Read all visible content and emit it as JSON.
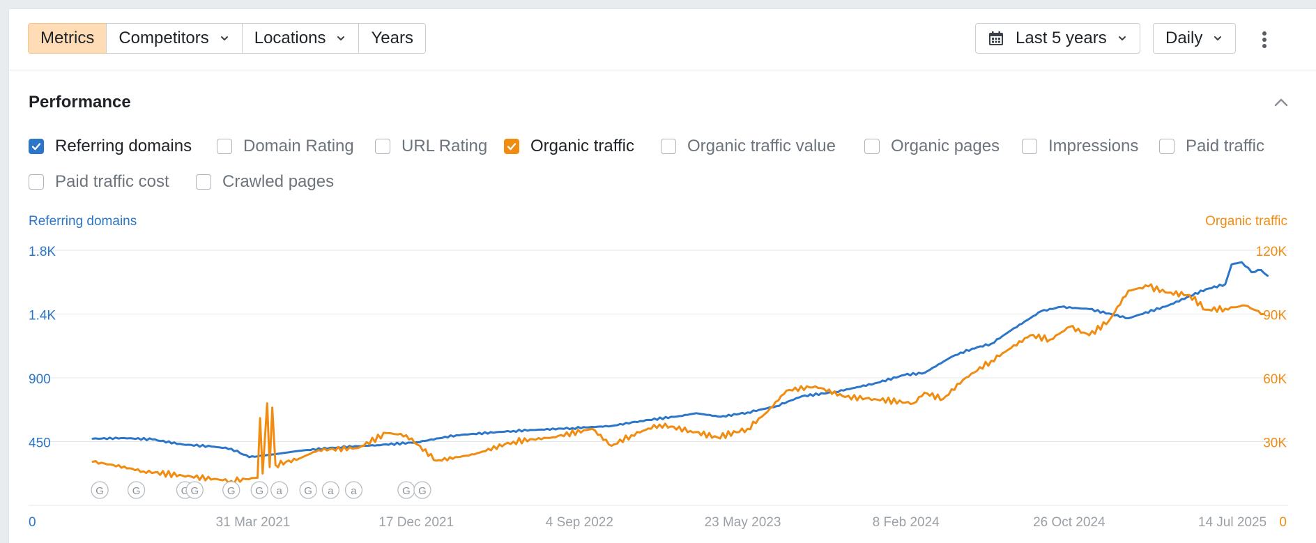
{
  "toolbar": {
    "tabs": [
      "Metrics",
      "Competitors",
      "Locations",
      "Years"
    ],
    "range_label": "Last 5 years",
    "interval_label": "Daily"
  },
  "section": {
    "title": "Performance"
  },
  "metrics": [
    {
      "label": "Referring domains",
      "checked": true,
      "color": "#2b76c8"
    },
    {
      "label": "Domain Rating",
      "checked": false
    },
    {
      "label": "URL Rating",
      "checked": false
    },
    {
      "label": "Organic traffic",
      "checked": true,
      "color": "#f08c12"
    },
    {
      "label": "Organic traffic value",
      "checked": false
    },
    {
      "label": "Organic pages",
      "checked": false
    },
    {
      "label": "Impressions",
      "checked": false
    },
    {
      "label": "Paid traffic",
      "checked": false
    },
    {
      "label": "Paid traffic cost",
      "checked": false
    },
    {
      "label": "Crawled pages",
      "checked": false
    }
  ],
  "chart_data": {
    "type": "line",
    "y_left_label": "Referring domains",
    "y_right_label": "Organic traffic",
    "y_left_ticks": [
      "0",
      "450",
      "900",
      "1.4K",
      "1.8K"
    ],
    "y_right_ticks": [
      "0",
      "30K",
      "60K",
      "90K",
      "120K"
    ],
    "ylim_left": [
      0,
      1800
    ],
    "ylim_right": [
      0,
      120000
    ],
    "x_tick_labels": [
      "31 Mar 2021",
      "17 Dec 2021",
      "4 Sep 2022",
      "23 May 2023",
      "8 Feb 2024",
      "26 Oct 2024",
      "14 Jul 2025"
    ],
    "xlim": [
      "2020-07-14",
      "2025-07-14"
    ],
    "grid": true,
    "colors": {
      "left": "#2b76c8",
      "right": "#f08c12"
    },
    "series": [
      {
        "name": "Referring domains",
        "axis": "left",
        "points": [
          [
            "2020-07-14",
            470
          ],
          [
            "2020-09-01",
            475
          ],
          [
            "2020-10-15",
            465
          ],
          [
            "2020-12-01",
            430
          ],
          [
            "2021-01-15",
            415
          ],
          [
            "2021-02-15",
            400
          ],
          [
            "2021-03-15",
            340
          ],
          [
            "2021-04-15",
            355
          ],
          [
            "2021-06-01",
            385
          ],
          [
            "2021-08-01",
            410
          ],
          [
            "2021-10-01",
            425
          ],
          [
            "2021-12-01",
            445
          ],
          [
            "2022-02-01",
            495
          ],
          [
            "2022-05-01",
            525
          ],
          [
            "2022-08-01",
            545
          ],
          [
            "2022-10-01",
            560
          ],
          [
            "2022-11-15",
            595
          ],
          [
            "2023-01-15",
            630
          ],
          [
            "2023-02-10",
            650
          ],
          [
            "2023-03-20",
            625
          ],
          [
            "2023-05-01",
            655
          ],
          [
            "2023-06-15",
            700
          ],
          [
            "2023-07-25",
            770
          ],
          [
            "2023-09-15",
            800
          ],
          [
            "2023-11-15",
            860
          ],
          [
            "2024-01-01",
            920
          ],
          [
            "2024-02-01",
            935
          ],
          [
            "2024-03-15",
            1050
          ],
          [
            "2024-04-15",
            1105
          ],
          [
            "2024-05-15",
            1140
          ],
          [
            "2024-06-15",
            1235
          ],
          [
            "2024-08-01",
            1370
          ],
          [
            "2024-09-01",
            1400
          ],
          [
            "2024-10-15",
            1385
          ],
          [
            "2024-12-15",
            1320
          ],
          [
            "2025-02-15",
            1410
          ],
          [
            "2025-04-15",
            1525
          ],
          [
            "2025-05-15",
            1560
          ],
          [
            "2025-05-25",
            1700
          ],
          [
            "2025-06-10",
            1715
          ],
          [
            "2025-06-25",
            1645
          ],
          [
            "2025-07-10",
            1660
          ],
          [
            "2025-07-20",
            1620
          ]
        ]
      },
      {
        "name": "Organic traffic",
        "axis": "right",
        "points": [
          [
            "2020-07-14",
            20500
          ],
          [
            "2020-08-15",
            19000
          ],
          [
            "2020-10-01",
            16000
          ],
          [
            "2020-12-01",
            14000
          ],
          [
            "2021-02-15",
            11500
          ],
          [
            "2021-03-28",
            13000
          ],
          [
            "2021-04-01",
            41000
          ],
          [
            "2021-04-05",
            15000
          ],
          [
            "2021-04-12",
            48000
          ],
          [
            "2021-04-16",
            18000
          ],
          [
            "2021-04-20",
            46000
          ],
          [
            "2021-04-25",
            19000
          ],
          [
            "2021-06-01",
            22000
          ],
          [
            "2021-07-01",
            26000
          ],
          [
            "2021-09-01",
            27000
          ],
          [
            "2021-10-15",
            34000
          ],
          [
            "2021-11-15",
            33000
          ],
          [
            "2022-01-01",
            21000
          ],
          [
            "2022-03-01",
            24000
          ],
          [
            "2022-05-01",
            30000
          ],
          [
            "2022-07-01",
            32000
          ],
          [
            "2022-09-01",
            36000
          ],
          [
            "2022-10-01",
            28000
          ],
          [
            "2022-11-01",
            33000
          ],
          [
            "2022-12-15",
            38000
          ],
          [
            "2023-02-01",
            35000
          ],
          [
            "2023-03-15",
            32000
          ],
          [
            "2023-05-01",
            36000
          ],
          [
            "2023-06-01",
            44000
          ],
          [
            "2023-07-01",
            54000
          ],
          [
            "2023-08-15",
            56000
          ],
          [
            "2023-10-01",
            51000
          ],
          [
            "2023-11-15",
            50000
          ],
          [
            "2024-01-15",
            48000
          ],
          [
            "2024-02-01",
            53000
          ],
          [
            "2024-03-01",
            50000
          ],
          [
            "2024-04-01",
            59000
          ],
          [
            "2024-05-15",
            68000
          ],
          [
            "2024-06-15",
            74000
          ],
          [
            "2024-07-15",
            80000
          ],
          [
            "2024-08-15",
            78000
          ],
          [
            "2024-09-15",
            84000
          ],
          [
            "2024-10-15",
            80000
          ],
          [
            "2024-11-15",
            87000
          ],
          [
            "2024-12-15",
            101000
          ],
          [
            "2025-01-15",
            103000
          ],
          [
            "2025-02-15",
            100000
          ],
          [
            "2025-03-20",
            99000
          ],
          [
            "2025-04-15",
            92000
          ],
          [
            "2025-05-15",
            92500
          ],
          [
            "2025-06-15",
            94000
          ],
          [
            "2025-07-14",
            90000
          ]
        ]
      }
    ],
    "annotations": [
      {
        "date": "2020-07-25",
        "type": "google-update"
      },
      {
        "date": "2020-09-20",
        "type": "google-update"
      },
      {
        "date": "2020-12-05",
        "type": "google-update"
      },
      {
        "date": "2020-12-20",
        "type": "google-update"
      },
      {
        "date": "2021-02-15",
        "type": "google-update"
      },
      {
        "date": "2021-03-31",
        "type": "google-update"
      },
      {
        "date": "2021-05-01",
        "type": "ahrefs-update"
      },
      {
        "date": "2021-06-15",
        "type": "google-update"
      },
      {
        "date": "2021-07-20",
        "type": "ahrefs-update"
      },
      {
        "date": "2021-08-25",
        "type": "ahrefs-update"
      },
      {
        "date": "2021-11-15",
        "type": "google-update"
      },
      {
        "date": "2021-12-10",
        "type": "google-update"
      }
    ]
  }
}
